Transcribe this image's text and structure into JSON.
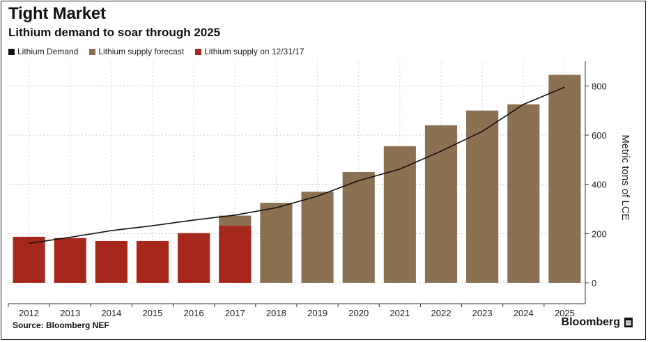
{
  "header": {
    "title": "Tight Market",
    "subtitle": "Lithium demand to soar through 2025"
  },
  "legend": [
    {
      "label": "Lithium Demand",
      "color": "#111111"
    },
    {
      "label": "Lithium supply forecast",
      "color": "#8b7152"
    },
    {
      "label": "Lithium supply on 12/31/17",
      "color": "#a6271b"
    }
  ],
  "footer": {
    "source": "Source: Bloomberg NEF",
    "brand": "Bloomberg"
  },
  "chart_data": {
    "type": "bar",
    "title": "Tight Market",
    "subtitle": "Lithium demand to soar through 2025",
    "ylabel": "Metric tons of LCE",
    "xlabel": "",
    "ylim": [
      0,
      900
    ],
    "yticks": [
      0,
      200,
      400,
      600,
      800
    ],
    "categories": [
      "2012",
      "2013",
      "2014",
      "2015",
      "2016",
      "2017",
      "2018",
      "2019",
      "2020",
      "2021",
      "2022",
      "2023",
      "2024",
      "2025"
    ],
    "series": [
      {
        "name": "Lithium supply on 12/31/17",
        "kind": "bar",
        "color": "#a6271b",
        "values": [
          187,
          182,
          170,
          170,
          202,
          232,
          0,
          0,
          0,
          0,
          0,
          0,
          0,
          0
        ]
      },
      {
        "name": "Lithium supply forecast",
        "kind": "bar",
        "color": "#8b7152",
        "values": [
          0,
          0,
          0,
          0,
          0,
          273,
          325,
          370,
          450,
          555,
          640,
          700,
          725,
          845
        ]
      },
      {
        "name": "Lithium Demand",
        "kind": "line",
        "color": "#111111",
        "values": [
          160,
          185,
          212,
          232,
          255,
          275,
          305,
          352,
          415,
          462,
          535,
          615,
          725,
          795
        ]
      }
    ],
    "grid": true,
    "legend_position": "top-left",
    "yaxis_side": "right"
  }
}
